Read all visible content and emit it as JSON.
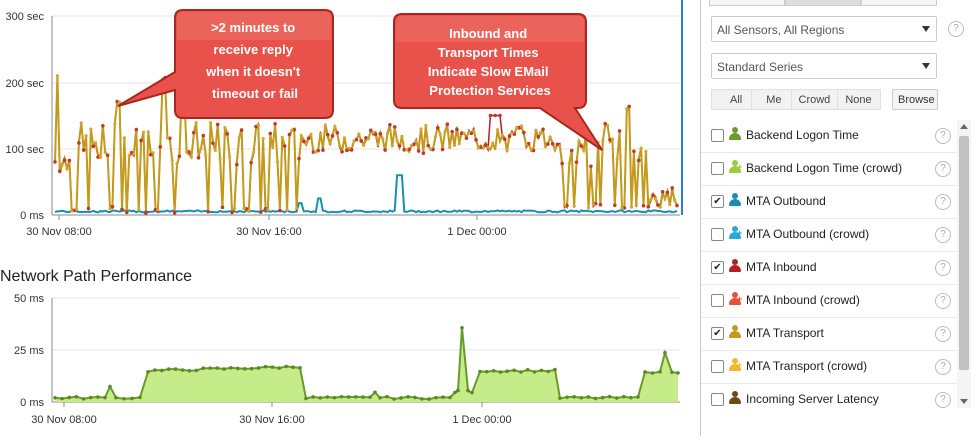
{
  "charts": {
    "top": {
      "y_ticks": [
        "300 sec",
        "200 sec",
        "100 sec",
        "0 ms"
      ],
      "x_ticks": [
        "30 Nov 08:00",
        "30 Nov 16:00",
        "1 Dec 00:00"
      ]
    },
    "bottom": {
      "title": "Network Path Performance",
      "y_ticks": [
        "50 ms",
        "25 ms",
        "0 ms"
      ],
      "x_ticks": [
        "30 Nov 08:00",
        "30 Nov 16:00",
        "1 Dec 00:00"
      ]
    }
  },
  "annotations": {
    "left": ">2 minutes to receive reply when it doesn't timeout or fail",
    "right": "Inbound and Transport Times Indicate Slow EMail Protection Services"
  },
  "panel": {
    "sensors_select": "All Sensors, All Regions",
    "series_select": "Standard Series",
    "filters": [
      "All",
      "Me",
      "Crowd",
      "None"
    ],
    "browse": "Browse",
    "items": [
      {
        "label": "Backend Logon Time",
        "checked": false,
        "color": "#6a9a2a",
        "crowd": false
      },
      {
        "label": "Backend Logon Time (crowd)",
        "checked": false,
        "color": "#9ccc3c",
        "crowd": true
      },
      {
        "label": "MTA Outbound",
        "checked": true,
        "color": "#1a8fb5",
        "crowd": false
      },
      {
        "label": "MTA Outbound (crowd)",
        "checked": false,
        "color": "#2aa8d8",
        "crowd": true
      },
      {
        "label": "MTA Inbound",
        "checked": true,
        "color": "#b22222",
        "crowd": false
      },
      {
        "label": "MTA Inbound (crowd)",
        "checked": false,
        "color": "#e8503a",
        "crowd": true
      },
      {
        "label": "MTA Transport",
        "checked": true,
        "color": "#c49a1c",
        "crowd": false
      },
      {
        "label": "MTA Transport (crowd)",
        "checked": false,
        "color": "#f0b830",
        "crowd": true
      },
      {
        "label": "Incoming Server Latency",
        "checked": false,
        "color": "#6b4a1a",
        "crowd": false
      }
    ]
  }
}
